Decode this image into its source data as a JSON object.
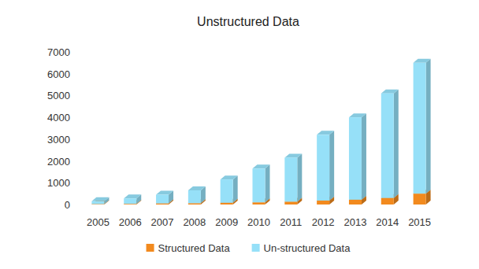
{
  "chart_data": {
    "type": "bar",
    "title": "Unstructured Data",
    "categories": [
      "2005",
      "2006",
      "2007",
      "2008",
      "2009",
      "2010",
      "2011",
      "2012",
      "2013",
      "2014",
      "2015"
    ],
    "series": [
      {
        "name": "Structured Data",
        "color": "#f28a1e",
        "values": [
          20,
          30,
          50,
          60,
          80,
          100,
          130,
          180,
          220,
          300,
          500
        ]
      },
      {
        "name": "Un-structured Data",
        "color": "#96e0f8",
        "values": [
          130,
          250,
          400,
          590,
          1070,
          1550,
          2020,
          3020,
          3780,
          4800,
          6000
        ]
      }
    ],
    "ylim": [
      0,
      7000
    ],
    "yticks": [
      0,
      1000,
      2000,
      3000,
      4000,
      5000,
      6000,
      7000
    ],
    "stacked": true,
    "grid": false,
    "legend": "bottom"
  }
}
